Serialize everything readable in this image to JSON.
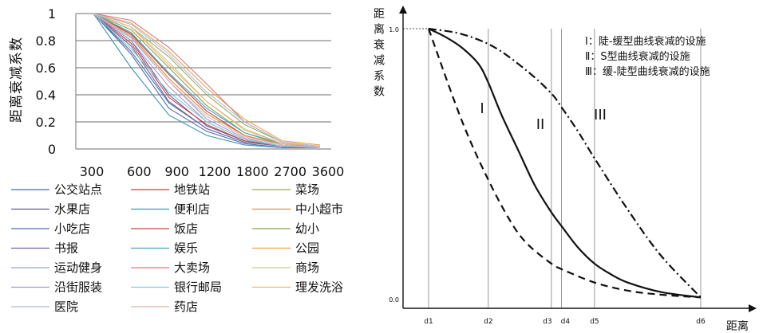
{
  "chart_data": [
    {
      "type": "line",
      "title": "",
      "xlabel": "",
      "ylabel": "距离衰减系数",
      "categories": [
        "300",
        "600",
        "900",
        "1200",
        "1800",
        "2700",
        "3600"
      ],
      "ylim": [
        0,
        1
      ],
      "yticks": [
        "0",
        "0.2",
        "0.4",
        "0.6",
        "0.8",
        "1"
      ],
      "grid": true,
      "legend_placement": "bottom",
      "series": [
        {
          "name": "公交站点",
          "color": "#4a6fa5",
          "values": [
            1.0,
            0.72,
            0.34,
            0.15,
            0.05,
            0.02,
            0.01
          ]
        },
        {
          "name": "地铁站",
          "color": "#b04a45",
          "values": [
            1.0,
            0.85,
            0.55,
            0.28,
            0.1,
            0.03,
            0.01
          ]
        },
        {
          "name": "菜场",
          "color": "#9aab5a",
          "values": [
            1.0,
            0.9,
            0.68,
            0.4,
            0.18,
            0.05,
            0.02
          ]
        },
        {
          "name": "水果店",
          "color": "#6a5a8f",
          "values": [
            1.0,
            0.8,
            0.4,
            0.17,
            0.06,
            0.02,
            0.01
          ]
        },
        {
          "name": "便利店",
          "color": "#3b96b0",
          "values": [
            1.0,
            0.6,
            0.25,
            0.1,
            0.03,
            0.01,
            0.01
          ]
        },
        {
          "name": "中小超市",
          "color": "#d98c3a",
          "values": [
            1.0,
            0.84,
            0.52,
            0.26,
            0.1,
            0.03,
            0.01
          ]
        },
        {
          "name": "小吃店",
          "color": "#4d6fb0",
          "values": [
            1.0,
            0.7,
            0.3,
            0.13,
            0.04,
            0.01,
            0.01
          ]
        },
        {
          "name": "饭店",
          "color": "#c04a45",
          "values": [
            1.0,
            0.78,
            0.38,
            0.18,
            0.06,
            0.02,
            0.01
          ]
        },
        {
          "name": "幼小",
          "color": "#8aa055",
          "values": [
            1.0,
            0.88,
            0.6,
            0.32,
            0.12,
            0.03,
            0.01
          ]
        },
        {
          "name": "书报",
          "color": "#7a62a0",
          "values": [
            1.0,
            0.76,
            0.35,
            0.15,
            0.05,
            0.02,
            0.01
          ]
        },
        {
          "name": "娱乐",
          "color": "#47a7c0",
          "values": [
            1.0,
            0.86,
            0.56,
            0.3,
            0.12,
            0.04,
            0.01
          ]
        },
        {
          "name": "公园",
          "color": "#f0a04a",
          "values": [
            1.0,
            0.93,
            0.72,
            0.45,
            0.22,
            0.06,
            0.03
          ]
        },
        {
          "name": "运动健身",
          "color": "#8fa6cf",
          "values": [
            1.0,
            0.82,
            0.5,
            0.22,
            0.08,
            0.02,
            0.01
          ]
        },
        {
          "name": "大卖场",
          "color": "#d07f7c",
          "values": [
            1.0,
            0.95,
            0.75,
            0.48,
            0.2,
            0.05,
            0.02
          ]
        },
        {
          "name": "商场",
          "color": "#c3cf96",
          "values": [
            1.0,
            0.9,
            0.64,
            0.35,
            0.15,
            0.04,
            0.02
          ]
        },
        {
          "name": "沿街服装",
          "color": "#a696c8",
          "values": [
            1.0,
            0.8,
            0.46,
            0.2,
            0.07,
            0.02,
            0.01
          ]
        },
        {
          "name": "银行邮局",
          "color": "#86c6d8",
          "values": [
            1.0,
            0.74,
            0.42,
            0.2,
            0.07,
            0.02,
            0.01
          ]
        },
        {
          "name": "理发洗浴",
          "color": "#f4b27a",
          "values": [
            1.0,
            0.9,
            0.62,
            0.35,
            0.14,
            0.04,
            0.02
          ]
        },
        {
          "name": "医院",
          "color": "#aebbe0",
          "values": [
            1.0,
            0.92,
            0.7,
            0.42,
            0.2,
            0.05,
            0.02
          ]
        },
        {
          "name": "药店",
          "color": "#e8b0ae",
          "values": [
            1.0,
            0.83,
            0.5,
            0.24,
            0.09,
            0.03,
            0.01
          ]
        }
      ]
    },
    {
      "type": "line",
      "title": "",
      "xlabel": "距离",
      "ylabel": "距离衰减系数",
      "y_axis_ticks": [
        "1.0",
        "0.0"
      ],
      "x_markers": [
        "d1",
        "d2",
        "d3",
        "d4",
        "d5",
        "d6"
      ],
      "x_marker_positions": [
        1,
        2.8,
        4.7,
        5,
        6,
        9.2
      ],
      "x_range": [
        0,
        10
      ],
      "ylim": [
        0,
        1
      ],
      "grid": false,
      "legend_placement": "top-right",
      "curve_labels": [
        "I",
        "II",
        "III"
      ],
      "legend": [
        "Ⅰ：陡-缓型曲线衰减的设施",
        "Ⅱ：S型曲线衰减的设施",
        "Ⅲ：缓-陡型曲线衰减的设施"
      ],
      "series": [
        {
          "name": "Ⅰ：陡-缓型曲线衰减的设施",
          "style": "dashed",
          "x": [
            1,
            2,
            2.8,
            3.5,
            4,
            4.7,
            5,
            6,
            7,
            8,
            9.2
          ],
          "y": [
            1.0,
            0.66,
            0.44,
            0.28,
            0.2,
            0.13,
            0.11,
            0.06,
            0.03,
            0.015,
            0.005
          ]
        },
        {
          "name": "Ⅱ：S型曲线衰减的设施",
          "style": "solid",
          "x": [
            1,
            1.5,
            2,
            2.5,
            2.8,
            3.2,
            3.7,
            4.2,
            4.7,
            5,
            5.5,
            6,
            6.5,
            7,
            8,
            9.2
          ],
          "y": [
            1.0,
            0.97,
            0.93,
            0.87,
            0.8,
            0.68,
            0.55,
            0.42,
            0.32,
            0.27,
            0.19,
            0.13,
            0.09,
            0.06,
            0.025,
            0.005
          ]
        },
        {
          "name": "Ⅲ：缓-陡型曲线衰减的设施",
          "style": "dash-dot",
          "x": [
            1,
            2,
            3,
            4,
            4.7,
            5,
            5.5,
            6,
            7,
            8,
            9.2
          ],
          "y": [
            1.0,
            0.98,
            0.93,
            0.84,
            0.76,
            0.71,
            0.62,
            0.52,
            0.33,
            0.16,
            0.005
          ]
        }
      ]
    }
  ]
}
